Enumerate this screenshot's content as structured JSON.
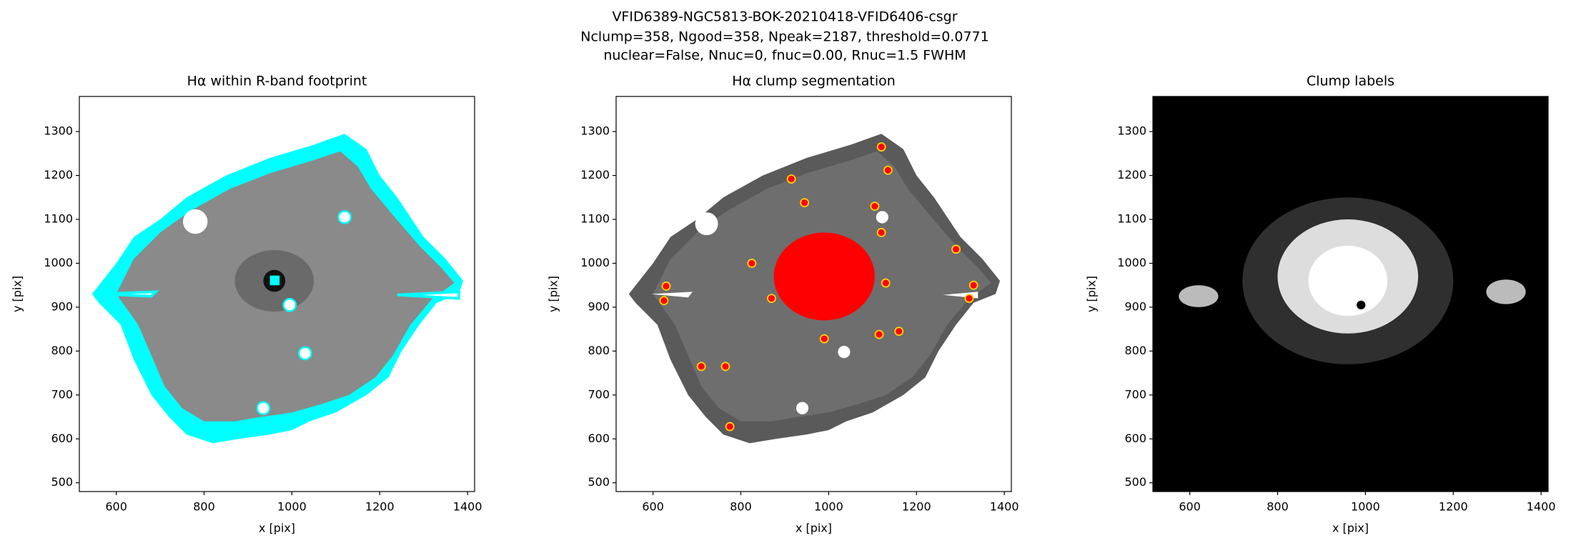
{
  "title": [
    "VFID6389-NGC5813-BOK-20210418-VFID6406-csgr",
    "Nclump=358, Ngood=358, Npeak=2187, threshold=0.0771",
    "nuclear=False, Nnuc=0, fnuc=0.00, Rnuc=1.5 FWHM"
  ],
  "chart_data": [
    {
      "type": "image",
      "title": "Hα within R-band footprint",
      "xlabel": "x [pix]",
      "ylabel": "y [pix]",
      "xlim": [
        516,
        1416
      ],
      "ylim": [
        480,
        1380
      ],
      "xticks": [
        600,
        800,
        1000,
        1200,
        1400
      ],
      "yticks": [
        500,
        600,
        700,
        800,
        900,
        1000,
        1100,
        1200,
        1300
      ]
    },
    {
      "type": "image",
      "title": "Hα clump segmentation",
      "xlabel": "x [pix]",
      "ylabel": "y [pix]",
      "xlim": [
        516,
        1416
      ],
      "ylim": [
        480,
        1380
      ],
      "xticks": [
        600,
        800,
        1000,
        1200,
        1400
      ],
      "yticks": [
        500,
        600,
        700,
        800,
        900,
        1000,
        1100,
        1200,
        1300
      ]
    },
    {
      "type": "image",
      "title": "Clump labels",
      "xlabel": "x [pix]",
      "ylabel": "y [pix]",
      "xlim": [
        516,
        1416
      ],
      "ylim": [
        480,
        1380
      ],
      "xticks": [
        600,
        800,
        1000,
        1200,
        1400
      ],
      "yticks": [
        500,
        600,
        700,
        800,
        900,
        1000,
        1100,
        1200,
        1300
      ]
    }
  ]
}
